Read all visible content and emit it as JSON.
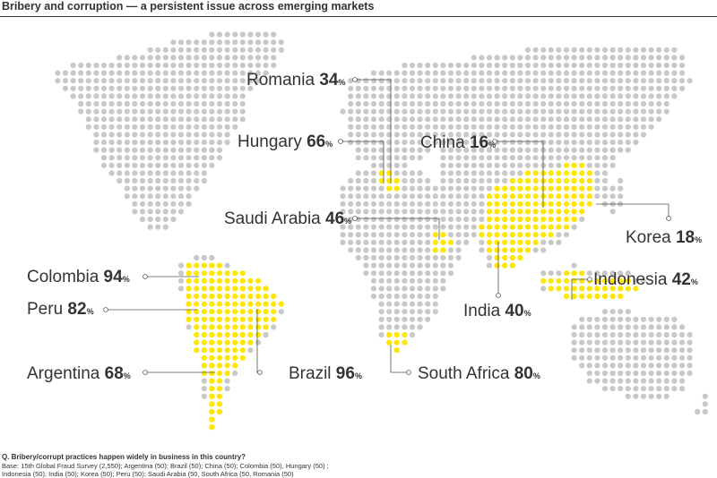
{
  "title": "Bribery and corruption — a persistent issue across emerging markets",
  "colors": {
    "land_dot": "#c8c8c8",
    "highlight_dot": "#ffe600",
    "text": "#333333"
  },
  "countries": [
    {
      "name": "Romania",
      "value": "34",
      "unit": "%"
    },
    {
      "name": "Hungary",
      "value": "66",
      "unit": "%"
    },
    {
      "name": "China",
      "value": "16",
      "unit": "%"
    },
    {
      "name": "Saudi Arabia",
      "value": "46",
      "unit": "%"
    },
    {
      "name": "Korea",
      "value": "18",
      "unit": "%"
    },
    {
      "name": "Colombia",
      "value": "94",
      "unit": "%"
    },
    {
      "name": "Indonesia",
      "value": "42",
      "unit": "%"
    },
    {
      "name": "Peru",
      "value": "82",
      "unit": "%"
    },
    {
      "name": "India",
      "value": "40",
      "unit": "%"
    },
    {
      "name": "Argentina",
      "value": "68",
      "unit": "%"
    },
    {
      "name": "Brazil",
      "value": "96",
      "unit": "%"
    },
    {
      "name": "South Africa",
      "value": "80",
      "unit": "%"
    }
  ],
  "footnote": {
    "question": "Q. Bribery/corrupt practices happen widely in business in this country?",
    "base_line1": "Base: 15th Global Fraud Survey (2,550); Argentina (50); Brazil (50); China (50); Colombia (50), Hungary (50) ;",
    "base_line2": "Indonesia (50); India (50); Korea (50); Peru (50); Saudi Arabia (50, South Africa (50, Romania (50)"
  }
}
